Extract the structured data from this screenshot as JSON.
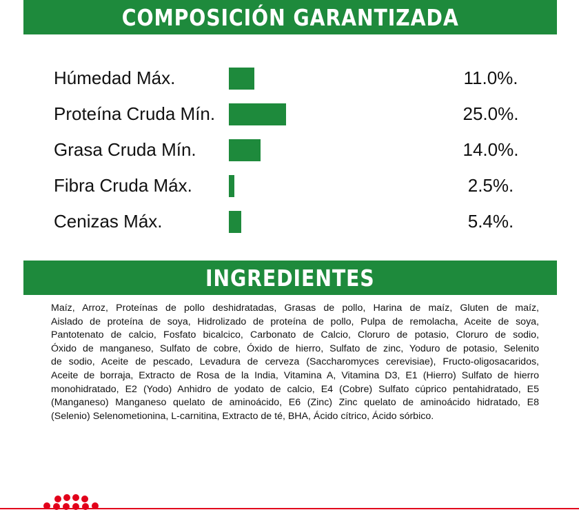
{
  "composition": {
    "title": "COMPOSICIÓN GARANTIZADA",
    "rows": [
      {
        "label": "Húmedad Máx.",
        "value": 11.0,
        "value_label": "11.0%."
      },
      {
        "label": "Proteína Cruda Mín.",
        "value": 25.0,
        "value_label": "25.0%."
      },
      {
        "label": "Grasa Cruda Mín.",
        "value": 14.0,
        "value_label": "14.0%."
      },
      {
        "label": "Fibra Cruda Máx.",
        "value": 2.5,
        "value_label": "2.5%."
      },
      {
        "label": "Cenizas Máx.",
        "value": 5.4,
        "value_label": "5.4%."
      }
    ]
  },
  "ingredients": {
    "title": "INGREDIENTES",
    "lines": [
      "Maíz, Arroz, Proteínas de pollo deshidratadas, Grasas  de pollo, Harina de maíz, Gluten de maíz,",
      "Aislado de proteína de soya, Hidrolizado de proteína de pollo, Pulpa de remolacha, Aceite de soya,",
      "Pantotenato de calcio, Fosfato bicalcico, Carbonato de Calcio, Cloruro de potasio, Cloruro de sodio,",
      "Óxido de manganeso, Sulfato de cobre, Óxido de hierro, Sulfato de zinc, Yoduro de potasio, Selenito",
      "de sodio, Aceite de pescado, Levadura de cerveza (Saccharomyces cerevisiae), Fructo-oligosacaridos,",
      "Aceite de borraja, Extracto de Rosa de la India, Vitamina A, Vitamina D3, E1 (Hierro) Sulfato de hierro",
      "monohidratado, E2 (Yodo) Anhidro de yodato de calcio, E4 (Cobre) Sulfato cúprico pentahidratado, E5",
      "(Manganeso) Manganeso quelato de aminoácido, E6 (Zinc) Zinc quelato de aminoácido hidratado, E8",
      "(Selenio) Selenometionina, L-carnitina, Extracto de té, BHA, Ácido cítrico, Ácido sórbico."
    ]
  }
}
